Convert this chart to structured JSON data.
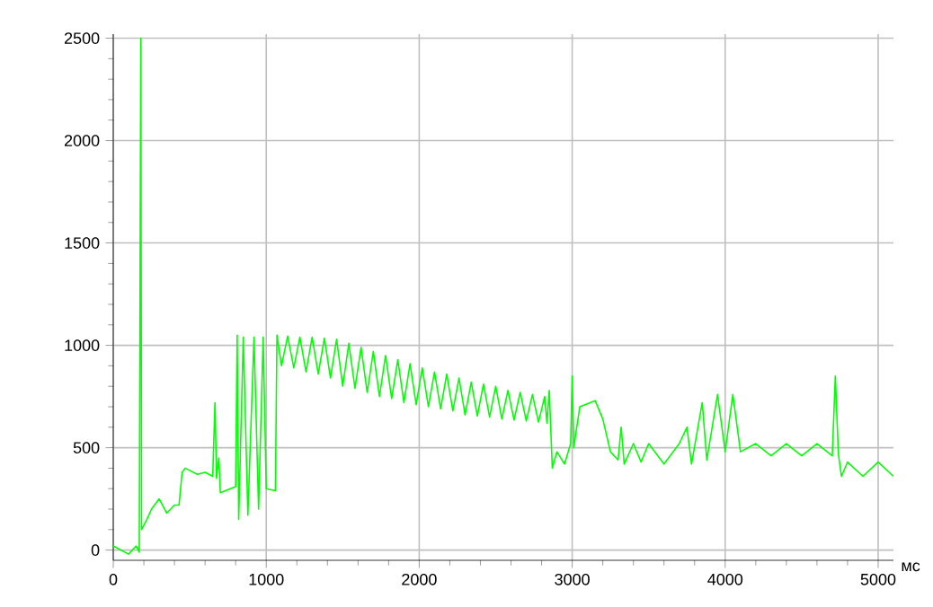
{
  "chart_data": {
    "type": "line",
    "xlabel": "мс",
    "xlim": [
      0,
      5100
    ],
    "ylim": [
      -50,
      2520
    ],
    "xticks": [
      0,
      1000,
      2000,
      3000,
      4000,
      5000
    ],
    "yticks": [
      0,
      500,
      1000,
      1500,
      2000,
      2500
    ],
    "grid": true,
    "series": [
      {
        "color": "#00ff00",
        "x": [
          0,
          100,
          150,
          170,
          180,
          185,
          220,
          250,
          300,
          350,
          400,
          430,
          450,
          470,
          550,
          600,
          650,
          665,
          675,
          690,
          700,
          800,
          810,
          820,
          850,
          880,
          920,
          950,
          980,
          1000,
          1060,
          1070,
          1100,
          1140,
          1180,
          1220,
          1260,
          1300,
          1340,
          1380,
          1420,
          1460,
          1500,
          1540,
          1580,
          1620,
          1660,
          1700,
          1740,
          1780,
          1820,
          1860,
          1900,
          1940,
          1980,
          2020,
          2060,
          2100,
          2140,
          2180,
          2220,
          2260,
          2300,
          2340,
          2380,
          2420,
          2460,
          2500,
          2540,
          2580,
          2620,
          2660,
          2700,
          2740,
          2780,
          2820,
          2835,
          2850,
          2870,
          2900,
          2950,
          2990,
          3000,
          3010,
          3050,
          3150,
          3200,
          3250,
          3300,
          3320,
          3340,
          3400,
          3450,
          3500,
          3600,
          3700,
          3750,
          3780,
          3850,
          3880,
          3950,
          4000,
          4050,
          4100,
          4200,
          4300,
          4400,
          4500,
          4600,
          4700,
          4720,
          4740,
          4760,
          4800,
          4900,
          5000,
          5100
        ],
        "values": [
          20,
          -20,
          20,
          -10,
          2500,
          100,
          150,
          200,
          250,
          180,
          220,
          220,
          380,
          400,
          370,
          380,
          360,
          720,
          350,
          450,
          280,
          310,
          1050,
          150,
          1040,
          170,
          1040,
          200,
          1040,
          300,
          290,
          1050,
          900,
          1045,
          890,
          1040,
          870,
          1040,
          860,
          1035,
          840,
          1030,
          800,
          1010,
          790,
          990,
          770,
          970,
          750,
          950,
          740,
          930,
          720,
          910,
          710,
          890,
          700,
          870,
          690,
          860,
          680,
          840,
          660,
          820,
          655,
          810,
          650,
          800,
          640,
          780,
          635,
          770,
          630,
          760,
          625,
          750,
          620,
          780,
          400,
          480,
          420,
          520,
          850,
          500,
          700,
          730,
          640,
          480,
          440,
          600,
          420,
          520,
          430,
          520,
          420,
          520,
          600,
          420,
          720,
          440,
          760,
          480,
          760,
          480,
          520,
          460,
          520,
          460,
          520,
          460,
          850,
          470,
          360,
          430,
          360,
          430,
          360
        ]
      }
    ]
  }
}
